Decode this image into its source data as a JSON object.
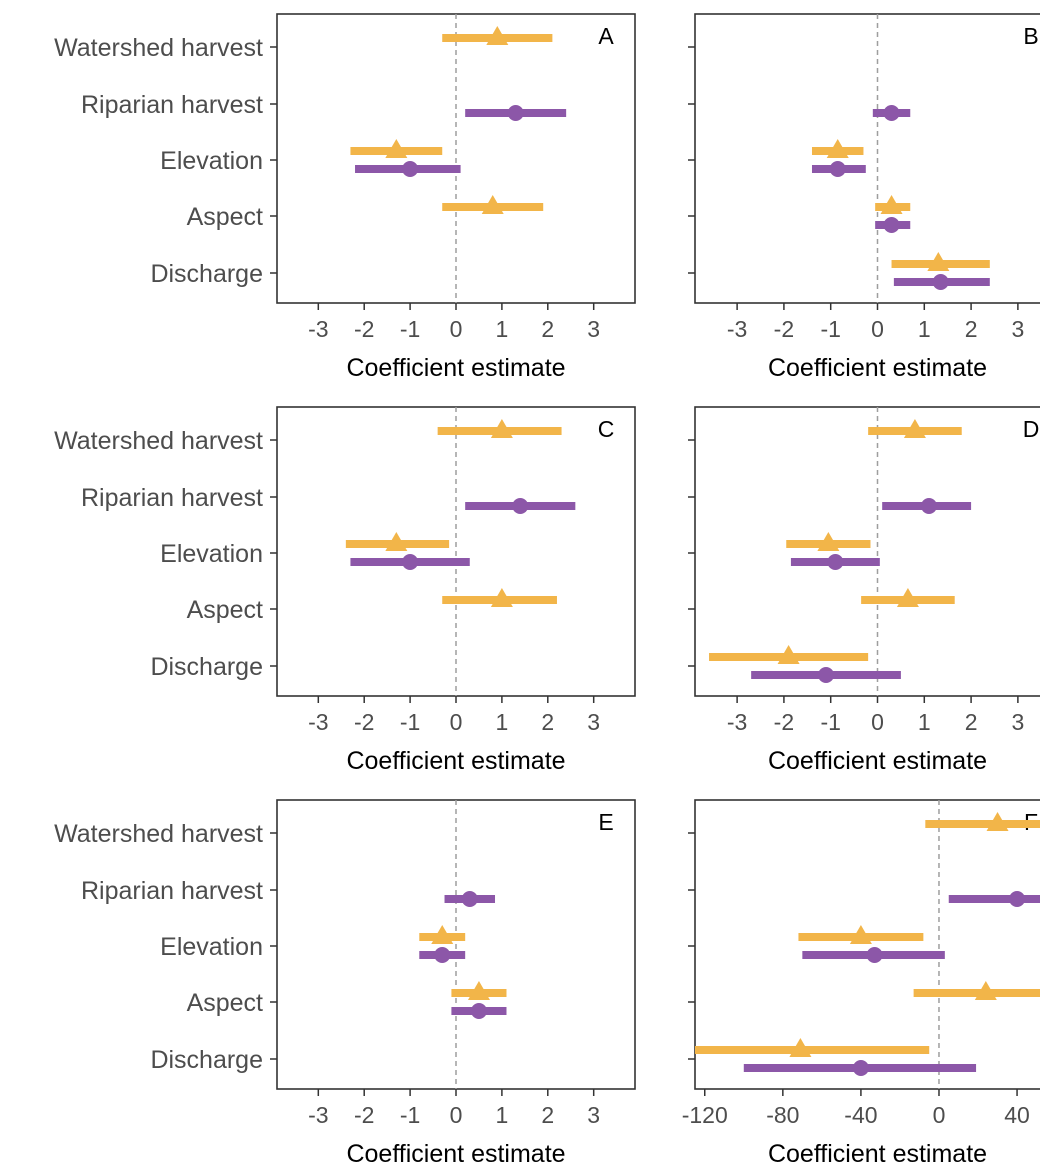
{
  "colors": {
    "model_triangle": "#f2b549",
    "model_circle": "#8c57a8",
    "frame": "#333333",
    "tick": "#333333",
    "zero_line": "#9e9e9e"
  },
  "chart_data": [
    {
      "panel": "A",
      "type": "forest",
      "xlabel": "Coefficient estimate",
      "xlim": [
        -3.9,
        3.9
      ],
      "ticks": [
        -3,
        -2,
        -1,
        0,
        1,
        2,
        3
      ],
      "categories": [
        "Watershed harvest",
        "Riparian harvest",
        "Elevation",
        "Aspect",
        "Discharge"
      ],
      "series": [
        {
          "marker": "triangle",
          "color": "#f2b549",
          "points": [
            {
              "category": "Watershed harvest",
              "estimate": 0.9,
              "low": -0.3,
              "high": 2.1
            },
            {
              "category": "Elevation",
              "estimate": -1.3,
              "low": -2.3,
              "high": -0.3
            },
            {
              "category": "Aspect",
              "estimate": 0.8,
              "low": -0.3,
              "high": 1.9
            }
          ]
        },
        {
          "marker": "circle",
          "color": "#8c57a8",
          "points": [
            {
              "category": "Riparian harvest",
              "estimate": 1.3,
              "low": 0.2,
              "high": 2.4
            },
            {
              "category": "Elevation",
              "estimate": -1.0,
              "low": -2.2,
              "high": 0.1
            }
          ]
        }
      ]
    },
    {
      "panel": "B",
      "type": "forest",
      "xlabel": "Coefficient estimate",
      "xlim": [
        -3.9,
        3.9
      ],
      "ticks": [
        -3,
        -2,
        -1,
        0,
        1,
        2,
        3
      ],
      "categories": [
        "Watershed harvest",
        "Riparian harvest",
        "Elevation",
        "Aspect",
        "Discharge"
      ],
      "series": [
        {
          "marker": "triangle",
          "color": "#f2b549",
          "points": [
            {
              "category": "Elevation",
              "estimate": -0.85,
              "low": -1.4,
              "high": -0.3
            },
            {
              "category": "Aspect",
              "estimate": 0.3,
              "low": -0.05,
              "high": 0.7
            },
            {
              "category": "Discharge",
              "estimate": 1.3,
              "low": 0.3,
              "high": 2.4
            }
          ]
        },
        {
          "marker": "circle",
          "color": "#8c57a8",
          "points": [
            {
              "category": "Riparian harvest",
              "estimate": 0.3,
              "low": -0.1,
              "high": 0.7
            },
            {
              "category": "Elevation",
              "estimate": -0.85,
              "low": -1.4,
              "high": -0.25
            },
            {
              "category": "Aspect",
              "estimate": 0.3,
              "low": -0.05,
              "high": 0.7
            },
            {
              "category": "Discharge",
              "estimate": 1.35,
              "low": 0.35,
              "high": 2.4
            }
          ]
        }
      ]
    },
    {
      "panel": "C",
      "type": "forest",
      "xlabel": "Coefficient estimate",
      "xlim": [
        -3.9,
        3.9
      ],
      "ticks": [
        -3,
        -2,
        -1,
        0,
        1,
        2,
        3
      ],
      "categories": [
        "Watershed harvest",
        "Riparian harvest",
        "Elevation",
        "Aspect",
        "Discharge"
      ],
      "series": [
        {
          "marker": "triangle",
          "color": "#f2b549",
          "points": [
            {
              "category": "Watershed harvest",
              "estimate": 1.0,
              "low": -0.4,
              "high": 2.3
            },
            {
              "category": "Elevation",
              "estimate": -1.3,
              "low": -2.4,
              "high": -0.15
            },
            {
              "category": "Aspect",
              "estimate": 1.0,
              "low": -0.3,
              "high": 2.2
            }
          ]
        },
        {
          "marker": "circle",
          "color": "#8c57a8",
          "points": [
            {
              "category": "Riparian harvest",
              "estimate": 1.4,
              "low": 0.2,
              "high": 2.6
            },
            {
              "category": "Elevation",
              "estimate": -1.0,
              "low": -2.3,
              "high": 0.3
            }
          ]
        }
      ]
    },
    {
      "panel": "D",
      "type": "forest",
      "xlabel": "Coefficient estimate",
      "xlim": [
        -3.9,
        3.9
      ],
      "ticks": [
        -3,
        -2,
        -1,
        0,
        1,
        2,
        3
      ],
      "categories": [
        "Watershed harvest",
        "Riparian harvest",
        "Elevation",
        "Aspect",
        "Discharge"
      ],
      "series": [
        {
          "marker": "triangle",
          "color": "#f2b549",
          "points": [
            {
              "category": "Watershed harvest",
              "estimate": 0.8,
              "low": -0.2,
              "high": 1.8
            },
            {
              "category": "Elevation",
              "estimate": -1.05,
              "low": -1.95,
              "high": -0.15
            },
            {
              "category": "Aspect",
              "estimate": 0.65,
              "low": -0.35,
              "high": 1.65
            },
            {
              "category": "Discharge",
              "estimate": -1.9,
              "low": -3.6,
              "high": -0.2
            }
          ]
        },
        {
          "marker": "circle",
          "color": "#8c57a8",
          "points": [
            {
              "category": "Riparian harvest",
              "estimate": 1.1,
              "low": 0.1,
              "high": 2.0
            },
            {
              "category": "Elevation",
              "estimate": -0.9,
              "low": -1.85,
              "high": 0.05
            },
            {
              "category": "Discharge",
              "estimate": -1.1,
              "low": -2.7,
              "high": 0.5
            }
          ]
        }
      ]
    },
    {
      "panel": "E",
      "type": "forest",
      "xlabel": "Coefficient estimate",
      "xlim": [
        -3.9,
        3.9
      ],
      "ticks": [
        -3,
        -2,
        -1,
        0,
        1,
        2,
        3
      ],
      "categories": [
        "Watershed harvest",
        "Riparian harvest",
        "Elevation",
        "Aspect",
        "Discharge"
      ],
      "series": [
        {
          "marker": "triangle",
          "color": "#f2b549",
          "points": [
            {
              "category": "Elevation",
              "estimate": -0.3,
              "low": -0.8,
              "high": 0.2
            },
            {
              "category": "Aspect",
              "estimate": 0.5,
              "low": -0.1,
              "high": 1.1
            }
          ]
        },
        {
          "marker": "circle",
          "color": "#8c57a8",
          "points": [
            {
              "category": "Riparian harvest",
              "estimate": 0.3,
              "low": -0.25,
              "high": 0.85
            },
            {
              "category": "Elevation",
              "estimate": -0.3,
              "low": -0.8,
              "high": 0.2
            },
            {
              "category": "Aspect",
              "estimate": 0.5,
              "low": -0.1,
              "high": 1.1
            }
          ]
        }
      ]
    },
    {
      "panel": "F",
      "type": "forest",
      "xlabel": "Coefficient estimate",
      "xlim": [
        -125,
        62
      ],
      "ticks": [
        -120,
        -80,
        -40,
        0,
        40
      ],
      "categories": [
        "Watershed harvest",
        "Riparian harvest",
        "Elevation",
        "Aspect",
        "Discharge"
      ],
      "series": [
        {
          "marker": "triangle",
          "color": "#f2b549",
          "points": [
            {
              "category": "Watershed harvest",
              "estimate": 30,
              "low": -7,
              "high": 68
            },
            {
              "category": "Elevation",
              "estimate": -40,
              "low": -72,
              "high": -8
            },
            {
              "category": "Aspect",
              "estimate": 24,
              "low": -13,
              "high": 62
            },
            {
              "category": "Discharge",
              "estimate": -71,
              "low": -131,
              "high": -5
            }
          ]
        },
        {
          "marker": "circle",
          "color": "#8c57a8",
          "points": [
            {
              "category": "Riparian harvest",
              "estimate": 40,
              "low": 5,
              "high": 75
            },
            {
              "category": "Elevation",
              "estimate": -33,
              "low": -70,
              "high": 3
            },
            {
              "category": "Discharge",
              "estimate": -40,
              "low": -100,
              "high": 19
            }
          ]
        }
      ]
    }
  ]
}
